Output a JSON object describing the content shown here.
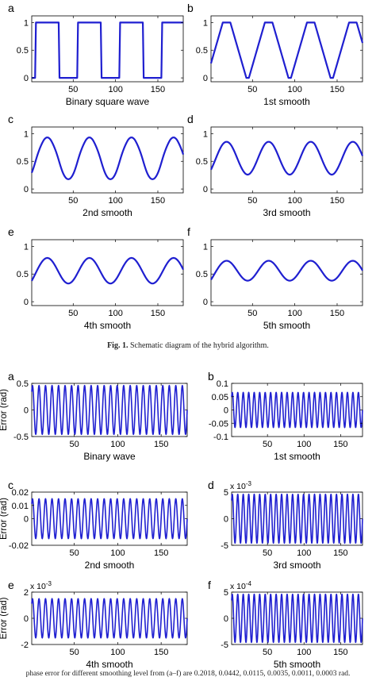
{
  "figure1": {
    "caption_label": "Fig. 1.",
    "caption_text": "Schematic diagram of the hybrid algorithm."
  },
  "figure2": {
    "caption_text": "phase error for different smoothing level from (a–f) are 0.2018, 0.0442, 0.0115, 0.0035, 0.0011, 0.0003 rad."
  },
  "chart_data": [
    {
      "panel_letter": "a",
      "type": "line",
      "title": "",
      "xlabel": "Binary square wave",
      "ylabel": "",
      "xlim": [
        1,
        180
      ],
      "ylim": [
        -0.07,
        1.12
      ],
      "xticks": [
        50,
        100,
        150
      ],
      "yticks": [
        0,
        0.5,
        1
      ],
      "ytick_labels": [
        "0",
        "0.5",
        "1"
      ],
      "exponent": "",
      "series": [
        {
          "kind": "wave",
          "period": 50,
          "smooth": 0,
          "amplitude": 1,
          "offset": 0,
          "color": "#1f1fd0"
        }
      ]
    },
    {
      "panel_letter": "b",
      "type": "line",
      "title": "",
      "xlabel": "1st smooth",
      "ylabel": "",
      "xlim": [
        1,
        180
      ],
      "ylim": [
        -0.07,
        1.12
      ],
      "xticks": [
        50,
        100,
        150
      ],
      "yticks": [
        0,
        0.5,
        1
      ],
      "ytick_labels": [
        "0",
        "0.5",
        "1"
      ],
      "exponent": "",
      "series": [
        {
          "kind": "wave",
          "period": 50,
          "smooth": 1,
          "amplitude": 1,
          "offset": 0,
          "color": "#1f1fd0"
        }
      ]
    },
    {
      "panel_letter": "c",
      "type": "line",
      "title": "",
      "xlabel": "2nd smooth",
      "ylabel": "",
      "xlim": [
        1,
        180
      ],
      "ylim": [
        -0.07,
        1.12
      ],
      "xticks": [
        50,
        100,
        150
      ],
      "yticks": [
        0,
        0.5,
        1
      ],
      "ytick_labels": [
        "0",
        "0.5",
        "1"
      ],
      "exponent": "",
      "series": [
        {
          "kind": "wave",
          "period": 50,
          "smooth": 2,
          "amplitude": 1,
          "offset": 0,
          "color": "#1f1fd0"
        }
      ]
    },
    {
      "panel_letter": "d",
      "type": "line",
      "title": "",
      "xlabel": "3rd smooth",
      "ylabel": "",
      "xlim": [
        1,
        180
      ],
      "ylim": [
        -0.07,
        1.12
      ],
      "xticks": [
        50,
        100,
        150
      ],
      "yticks": [
        0,
        0.5,
        1
      ],
      "ytick_labels": [
        "0",
        "0.5",
        "1"
      ],
      "exponent": "",
      "series": [
        {
          "kind": "wave",
          "period": 50,
          "smooth": 3,
          "amplitude": 1,
          "offset": 0,
          "color": "#1f1fd0"
        }
      ]
    },
    {
      "panel_letter": "e",
      "type": "line",
      "title": "",
      "xlabel": "4th smooth",
      "ylabel": "",
      "xlim": [
        1,
        180
      ],
      "ylim": [
        -0.07,
        1.12
      ],
      "xticks": [
        50,
        100,
        150
      ],
      "yticks": [
        0,
        0.5,
        1
      ],
      "ytick_labels": [
        "0",
        "0.5",
        "1"
      ],
      "exponent": "",
      "series": [
        {
          "kind": "wave",
          "period": 50,
          "smooth": 4,
          "amplitude": 1,
          "offset": 0,
          "color": "#1f1fd0"
        }
      ]
    },
    {
      "panel_letter": "f",
      "type": "line",
      "title": "",
      "xlabel": "5th smooth",
      "ylabel": "",
      "xlim": [
        1,
        180
      ],
      "ylim": [
        -0.07,
        1.12
      ],
      "xticks": [
        50,
        100,
        150
      ],
      "yticks": [
        0,
        0.5,
        1
      ],
      "ytick_labels": [
        "0",
        "0.5",
        "1"
      ],
      "exponent": "",
      "series": [
        {
          "kind": "wave",
          "period": 50,
          "smooth": 5,
          "amplitude": 1,
          "offset": 0,
          "color": "#1f1fd0"
        }
      ]
    },
    {
      "panel_letter": "a",
      "type": "line",
      "title": "",
      "xlabel": "Binary wave",
      "ylabel": "Error (rad)",
      "xlim": [
        1,
        180
      ],
      "ylim": [
        -0.5,
        0.5
      ],
      "xticks": [
        50,
        100,
        150
      ],
      "yticks": [
        -0.5,
        0,
        0.5
      ],
      "ytick_labels": [
        "-0.5",
        "0",
        "0.5"
      ],
      "exponent": "",
      "series": [
        {
          "kind": "error",
          "period": 7.5,
          "amplitude": 0.46,
          "color": "#1f1fd0"
        }
      ]
    },
    {
      "panel_letter": "b",
      "type": "line",
      "title": "",
      "xlabel": "1st smooth",
      "ylabel": "",
      "xlim": [
        1,
        180
      ],
      "ylim": [
        -0.1,
        0.1
      ],
      "xticks": [
        50,
        100,
        150
      ],
      "yticks": [
        -0.1,
        -0.05,
        0,
        0.05,
        0.1
      ],
      "ytick_labels": [
        "-0.1",
        "-0.05",
        "0",
        "0.05",
        "0.1"
      ],
      "exponent": "",
      "series": [
        {
          "kind": "error",
          "period": 7.5,
          "amplitude": 0.066,
          "color": "#1f1fd0"
        }
      ]
    },
    {
      "panel_letter": "c",
      "type": "line",
      "title": "",
      "xlabel": "2nd smooth",
      "ylabel": "Error (rad)",
      "xlim": [
        1,
        180
      ],
      "ylim": [
        -0.02,
        0.02
      ],
      "xticks": [
        50,
        100,
        150
      ],
      "yticks": [
        -0.02,
        0,
        0.01,
        0.02
      ],
      "ytick_labels": [
        "-0.02",
        "0",
        "0.01",
        "0.02"
      ],
      "exponent": "",
      "series": [
        {
          "kind": "error",
          "period": 7.5,
          "amplitude": 0.015,
          "color": "#1f1fd0"
        }
      ]
    },
    {
      "panel_letter": "d",
      "type": "line",
      "title": "",
      "xlabel": "3rd smooth",
      "ylabel": "",
      "xlim": [
        1,
        180
      ],
      "ylim": [
        -5,
        5
      ],
      "xticks": [
        50,
        100,
        150
      ],
      "yticks": [
        -5,
        0,
        5
      ],
      "ytick_labels": [
        "-5",
        "0",
        "5"
      ],
      "exponent": "x 10-3",
      "series": [
        {
          "kind": "error",
          "period": 7.5,
          "amplitude": 4.6,
          "color": "#1f1fd0"
        }
      ]
    },
    {
      "panel_letter": "e",
      "type": "line",
      "title": "",
      "xlabel": "4th smooth",
      "ylabel": "Error (rad)",
      "xlim": [
        1,
        180
      ],
      "ylim": [
        -2,
        2
      ],
      "xticks": [
        50,
        100,
        150
      ],
      "yticks": [
        -2,
        0,
        2
      ],
      "ytick_labels": [
        "-2",
        "0",
        "2"
      ],
      "exponent": "x 10-3",
      "series": [
        {
          "kind": "error",
          "period": 7.5,
          "amplitude": 1.5,
          "color": "#1f1fd0"
        }
      ]
    },
    {
      "panel_letter": "f",
      "type": "line",
      "title": "",
      "xlabel": "5th smooth",
      "ylabel": "",
      "xlim": [
        1,
        180
      ],
      "ylim": [
        -5,
        5
      ],
      "xticks": [
        50,
        100,
        150
      ],
      "yticks": [
        -5,
        0,
        5
      ],
      "ytick_labels": [
        "-5",
        "0",
        "5"
      ],
      "exponent": "x 10-4",
      "series": [
        {
          "kind": "error",
          "period": 7.5,
          "amplitude": 4.6,
          "color": "#1f1fd0"
        }
      ]
    }
  ]
}
